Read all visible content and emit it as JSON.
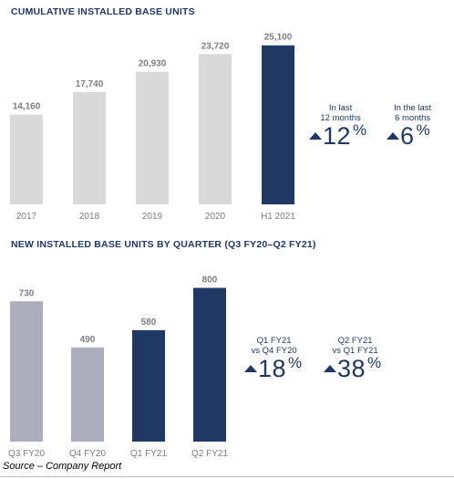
{
  "chart_data": [
    {
      "type": "bar",
      "title": "CUMULATIVE INSTALLED BASE UNITS",
      "categories": [
        "2017",
        "2018",
        "2019",
        "2020",
        "H1 2021"
      ],
      "values": [
        14160,
        17740,
        20930,
        23720,
        25100
      ],
      "value_labels": [
        "14,160",
        "17,740",
        "20,930",
        "23,720",
        "25,100"
      ],
      "bar_colors": [
        "#d9d9d9",
        "#d9d9d9",
        "#d9d9d9",
        "#d9d9d9",
        "#1f3864"
      ],
      "ylim": [
        0,
        26500
      ],
      "grid": false,
      "callouts": [
        {
          "label_line1": "In last",
          "label_line2": "12 months",
          "value": "12",
          "unit": "%",
          "direction": "up"
        },
        {
          "label_line1": "In the last",
          "label_line2": "6 months",
          "value": "6",
          "unit": "%",
          "direction": "up"
        }
      ]
    },
    {
      "type": "bar",
      "title": "NEW INSTALLED BASE UNITS BY QUARTER (Q3 FY20–Q2 FY21)",
      "categories": [
        "Q3 FY20",
        "Q4 FY20",
        "Q1 FY21",
        "Q2 FY21"
      ],
      "values": [
        730,
        490,
        580,
        800
      ],
      "value_labels": [
        "730",
        "490",
        "580",
        "800"
      ],
      "bar_colors": [
        "#adadbe",
        "#adadbe",
        "#1f3864",
        "#1f3864"
      ],
      "ylim": [
        0,
        850
      ],
      "grid": false,
      "callouts": [
        {
          "label_line1": "Q1 FY21",
          "label_line2": "vs Q4 FY20",
          "value": "18",
          "unit": "%",
          "direction": "up"
        },
        {
          "label_line1": "Q2 FY21",
          "label_line2": "vs Q1 FY21",
          "value": "38",
          "unit": "%",
          "direction": "up"
        }
      ]
    }
  ],
  "source": "Source – Company Report",
  "colors": {
    "title": "#1f3864",
    "label": "#7f7f7f",
    "accent": "#1f3864"
  }
}
